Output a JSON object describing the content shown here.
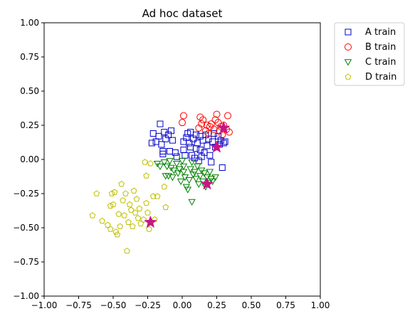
{
  "chart_data": {
    "type": "scatter",
    "title": "Ad hoc dataset",
    "xlabel": "",
    "ylabel": "",
    "xlim": [
      -1.0,
      1.0
    ],
    "ylim": [
      -1.0,
      1.0
    ],
    "xticks": [
      "−1.00",
      "−0.75",
      "−0.50",
      "−0.25",
      "0.00",
      "0.25",
      "0.50",
      "0.75",
      "1.00"
    ],
    "yticks": [
      "−1.00",
      "−0.75",
      "−0.50",
      "−0.25",
      "0.00",
      "0.25",
      "0.50",
      "0.75",
      "1.00"
    ],
    "grid": false,
    "legend_position": "outside-top-right",
    "series": [
      {
        "name": "A train",
        "marker": "square",
        "color": "#0000cc",
        "points": [
          [
            -0.22,
            0.12
          ],
          [
            -0.21,
            0.19
          ],
          [
            -0.19,
            0.13
          ],
          [
            -0.17,
            0.17
          ],
          [
            -0.16,
            0.26
          ],
          [
            -0.15,
            0.11
          ],
          [
            -0.14,
            0.06
          ],
          [
            -0.14,
            0.04
          ],
          [
            -0.13,
            0.2
          ],
          [
            -0.12,
            0.15
          ],
          [
            -0.1,
            0.18
          ],
          [
            -0.09,
            0.06
          ],
          [
            -0.08,
            0.21
          ],
          [
            -0.07,
            0.14
          ],
          [
            -0.05,
            0.05
          ],
          [
            -0.04,
            0.02
          ],
          [
            0.01,
            0.07
          ],
          [
            0.01,
            0.13
          ],
          [
            0.02,
            0.03
          ],
          [
            0.03,
            0.16
          ],
          [
            0.04,
            0.19
          ],
          [
            0.05,
            0.12
          ],
          [
            0.06,
            0.09
          ],
          [
            0.06,
            0.2
          ],
          [
            0.07,
            0.03
          ],
          [
            0.08,
            0.15
          ],
          [
            0.09,
            0.01
          ],
          [
            0.1,
            0.18
          ],
          [
            0.1,
            0.08
          ],
          [
            0.11,
            0.12
          ],
          [
            0.12,
            -0.01
          ],
          [
            0.13,
            0.17
          ],
          [
            0.13,
            0.07
          ],
          [
            0.14,
            0.02
          ],
          [
            0.15,
            0.14
          ],
          [
            0.16,
            0.05
          ],
          [
            0.17,
            0.18
          ],
          [
            0.18,
            0.1
          ],
          [
            0.19,
            0.15
          ],
          [
            0.2,
            0.03
          ],
          [
            0.21,
            -0.02
          ],
          [
            0.22,
            0.13
          ],
          [
            0.23,
            0.19
          ],
          [
            0.24,
            0.09
          ],
          [
            0.26,
            0.17
          ],
          [
            0.27,
            0.11
          ],
          [
            0.28,
            0.14
          ],
          [
            0.29,
            -0.06
          ],
          [
            0.3,
            0.12
          ],
          [
            0.31,
            0.13
          ]
        ]
      },
      {
        "name": "B train",
        "marker": "circle",
        "color": "#ff0000",
        "points": [
          [
            0.0,
            0.27
          ],
          [
            0.01,
            0.32
          ],
          [
            0.12,
            0.23
          ],
          [
            0.13,
            0.31
          ],
          [
            0.14,
            0.26
          ],
          [
            0.15,
            0.29
          ],
          [
            0.17,
            0.21
          ],
          [
            0.18,
            0.25
          ],
          [
            0.19,
            0.19
          ],
          [
            0.2,
            0.24
          ],
          [
            0.21,
            0.26
          ],
          [
            0.23,
            0.22
          ],
          [
            0.24,
            0.29
          ],
          [
            0.25,
            0.33
          ],
          [
            0.26,
            0.27
          ],
          [
            0.27,
            0.21
          ],
          [
            0.28,
            0.24
          ],
          [
            0.29,
            0.18
          ],
          [
            0.3,
            0.25
          ],
          [
            0.32,
            0.22
          ],
          [
            0.33,
            0.32
          ],
          [
            0.34,
            0.2
          ]
        ]
      },
      {
        "name": "C train",
        "marker": "triangle-down",
        "color": "#008000",
        "points": [
          [
            -0.18,
            -0.03
          ],
          [
            -0.16,
            -0.05
          ],
          [
            -0.13,
            -0.02
          ],
          [
            -0.12,
            -0.12
          ],
          [
            -0.11,
            -0.05
          ],
          [
            -0.1,
            -0.12
          ],
          [
            -0.09,
            -0.01
          ],
          [
            -0.08,
            -0.06
          ],
          [
            -0.07,
            -0.13
          ],
          [
            -0.06,
            -0.08
          ],
          [
            -0.04,
            -0.03
          ],
          [
            -0.03,
            -0.1
          ],
          [
            -0.02,
            -0.07
          ],
          [
            -0.01,
            -0.16
          ],
          [
            0.0,
            -0.01
          ],
          [
            0.01,
            -0.05
          ],
          [
            0.01,
            -0.09
          ],
          [
            0.02,
            -0.13
          ],
          [
            0.03,
            -0.2
          ],
          [
            0.04,
            -0.22
          ],
          [
            0.05,
            -0.15
          ],
          [
            0.06,
            -0.07
          ],
          [
            0.07,
            -0.02
          ],
          [
            0.07,
            -0.31
          ],
          [
            0.08,
            -0.11
          ],
          [
            0.09,
            -0.09
          ],
          [
            0.1,
            -0.14
          ],
          [
            0.11,
            -0.05
          ],
          [
            0.12,
            -0.18
          ],
          [
            0.13,
            -0.12
          ],
          [
            0.14,
            -0.08
          ],
          [
            0.15,
            -0.16
          ],
          [
            0.16,
            -0.1
          ],
          [
            0.17,
            -0.2
          ],
          [
            0.18,
            -0.13
          ],
          [
            0.19,
            -0.17
          ],
          [
            0.2,
            -0.09
          ],
          [
            0.21,
            -0.14
          ],
          [
            0.22,
            -0.16
          ],
          [
            0.24,
            -0.13
          ]
        ]
      },
      {
        "name": "D train",
        "marker": "pentagon",
        "color": "#bfbf00",
        "points": [
          [
            -0.62,
            -0.25
          ],
          [
            -0.65,
            -0.41
          ],
          [
            -0.58,
            -0.45
          ],
          [
            -0.54,
            -0.48
          ],
          [
            -0.52,
            -0.51
          ],
          [
            -0.52,
            -0.34
          ],
          [
            -0.51,
            -0.25
          ],
          [
            -0.5,
            -0.33
          ],
          [
            -0.49,
            -0.24
          ],
          [
            -0.48,
            -0.53
          ],
          [
            -0.47,
            -0.55
          ],
          [
            -0.46,
            -0.4
          ],
          [
            -0.45,
            -0.49
          ],
          [
            -0.44,
            -0.18
          ],
          [
            -0.43,
            -0.3
          ],
          [
            -0.42,
            -0.41
          ],
          [
            -0.41,
            -0.25
          ],
          [
            -0.4,
            -0.67
          ],
          [
            -0.39,
            -0.46
          ],
          [
            -0.38,
            -0.33
          ],
          [
            -0.37,
            -0.37
          ],
          [
            -0.36,
            -0.49
          ],
          [
            -0.35,
            -0.23
          ],
          [
            -0.34,
            -0.39
          ],
          [
            -0.33,
            -0.29
          ],
          [
            -0.32,
            -0.43
          ],
          [
            -0.31,
            -0.36
          ],
          [
            -0.3,
            -0.47
          ],
          [
            -0.28,
            -0.44
          ],
          [
            -0.27,
            -0.02
          ],
          [
            -0.26,
            -0.12
          ],
          [
            -0.26,
            -0.32
          ],
          [
            -0.25,
            -0.39
          ],
          [
            -0.24,
            -0.51
          ],
          [
            -0.23,
            -0.03
          ],
          [
            -0.21,
            -0.27
          ],
          [
            -0.2,
            -0.44
          ],
          [
            -0.18,
            -0.27
          ],
          [
            -0.13,
            -0.2
          ],
          [
            -0.12,
            -0.35
          ]
        ]
      }
    ],
    "highlights": {
      "marker": "star",
      "color": "#c71585",
      "points": [
        [
          0.3,
          0.23
        ],
        [
          0.25,
          0.09
        ],
        [
          0.18,
          -0.18
        ],
        [
          -0.23,
          -0.46
        ]
      ]
    }
  }
}
